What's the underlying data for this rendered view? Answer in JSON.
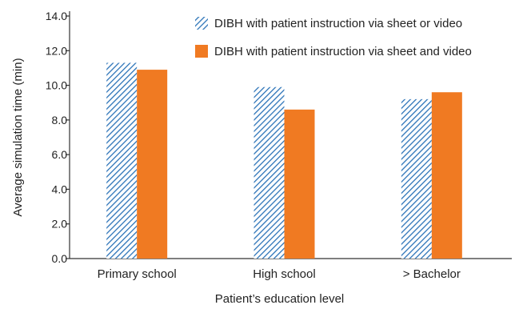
{
  "chart_data": {
    "type": "bar",
    "xlabel": "Patient’s education level",
    "ylabel": "Average simulation time (min)",
    "ylim": [
      0,
      14
    ],
    "yticks": [
      "0.0",
      "2.0",
      "4.0",
      "6.0",
      "8.0",
      "10.0",
      "12.0",
      "14.0"
    ],
    "grid": false,
    "legend_position": "top-right",
    "categories": [
      "Primary school",
      "High school",
      "> Bachelor"
    ],
    "series": [
      {
        "name": "DIBH with patient instruction via sheet or video",
        "values": [
          11.3,
          9.9,
          9.2
        ],
        "color": "#2b73b8",
        "pattern": "diagonal-hatch"
      },
      {
        "name": "DIBH with patient instruction via sheet and video",
        "values": [
          10.9,
          8.6,
          9.6
        ],
        "color": "#f07a22",
        "pattern": "solid"
      }
    ]
  }
}
